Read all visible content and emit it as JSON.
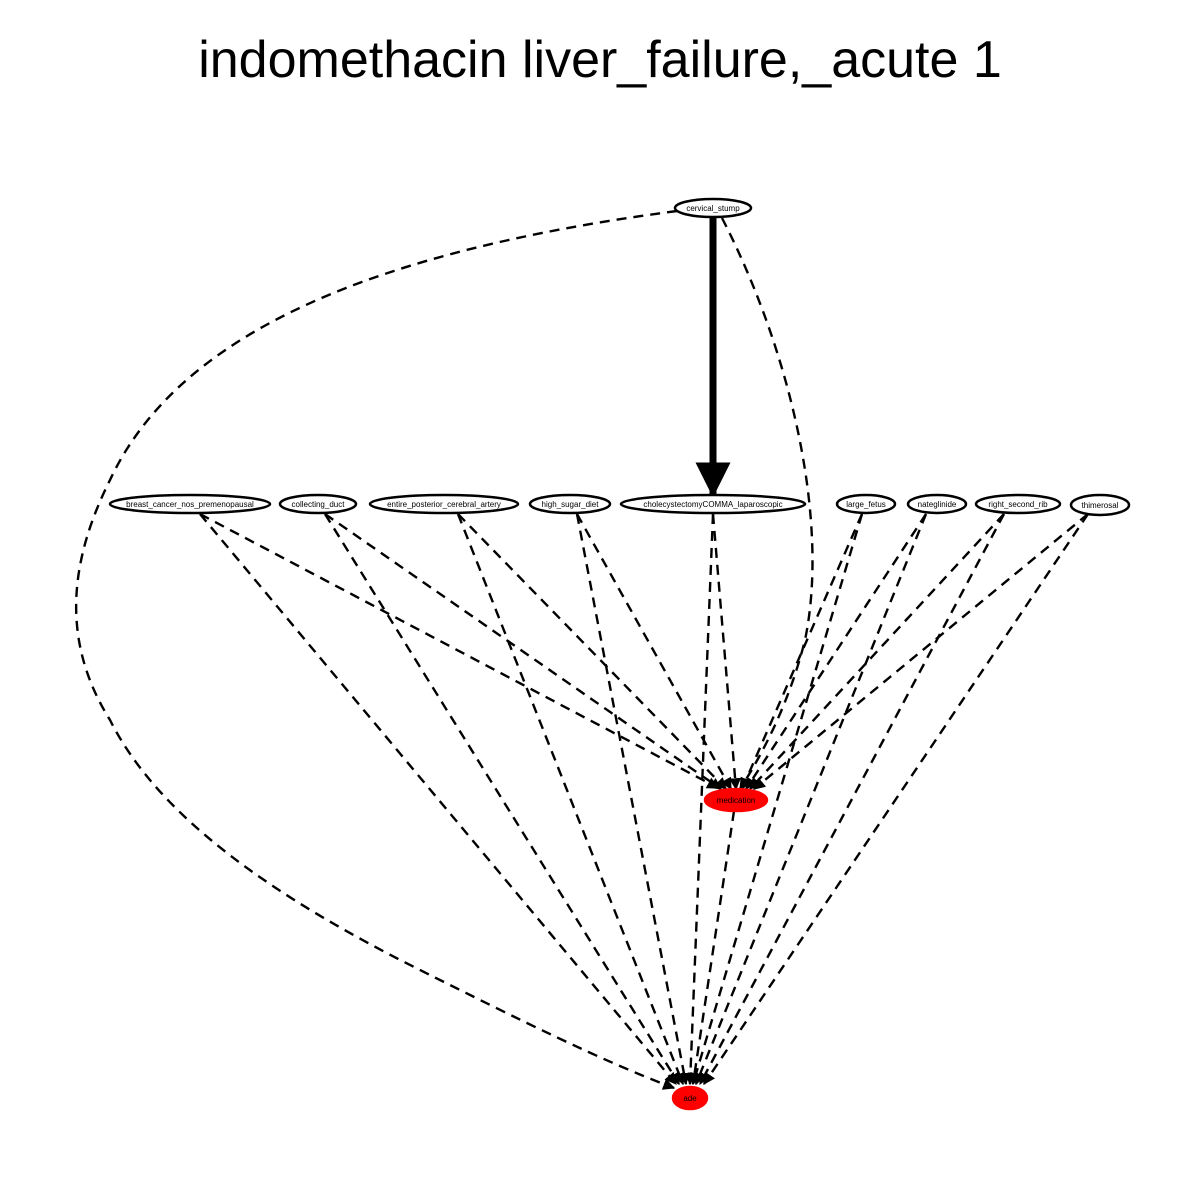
{
  "title": "indomethacin liver_failure,_acute 1",
  "colors": {
    "edge": "#000000",
    "node_outline": "#000000",
    "node_fill_default": "#ffffff",
    "node_fill_highlight": "#ff0000"
  },
  "nodes": [
    {
      "id": "cervical_stump",
      "label": "cervical_stump",
      "highlight": false
    },
    {
      "id": "breast_cancer",
      "label": "breast_cancer_nos_premenopausal",
      "highlight": false
    },
    {
      "id": "collecting_duct",
      "label": "collecting_duct",
      "highlight": false
    },
    {
      "id": "entire_posterior_cerebral_artery",
      "label": "entire_posterior_cerebral_artery",
      "highlight": false
    },
    {
      "id": "high_sugar_diet",
      "label": "high_sugar_diet",
      "highlight": false
    },
    {
      "id": "cholecystectomy",
      "label": "cholecystectomyCOMMA_laparoscopic",
      "highlight": false
    },
    {
      "id": "large_fetus",
      "label": "large_fetus",
      "highlight": false
    },
    {
      "id": "nateglinide",
      "label": "nateglinide",
      "highlight": false
    },
    {
      "id": "right_second_rib",
      "label": "right_second_rib",
      "highlight": false
    },
    {
      "id": "thimerosal",
      "label": "thimerosal",
      "highlight": false
    },
    {
      "id": "medication",
      "label": "medication",
      "highlight": true
    },
    {
      "id": "ade",
      "label": "ade",
      "highlight": true
    }
  ],
  "edges": [
    {
      "from": "cervical_stump",
      "to": "cholecystectomy",
      "style": "bold"
    },
    {
      "from": "cervical_stump",
      "to": "medication",
      "style": "dashed"
    },
    {
      "from": "cervical_stump",
      "to": "ade",
      "style": "dashed"
    },
    {
      "from": "breast_cancer",
      "to": "medication",
      "style": "dashed"
    },
    {
      "from": "breast_cancer",
      "to": "ade",
      "style": "dashed"
    },
    {
      "from": "collecting_duct",
      "to": "medication",
      "style": "dashed"
    },
    {
      "from": "collecting_duct",
      "to": "ade",
      "style": "dashed"
    },
    {
      "from": "entire_posterior_cerebral_artery",
      "to": "medication",
      "style": "dashed"
    },
    {
      "from": "entire_posterior_cerebral_artery",
      "to": "ade",
      "style": "dashed"
    },
    {
      "from": "high_sugar_diet",
      "to": "medication",
      "style": "dashed"
    },
    {
      "from": "high_sugar_diet",
      "to": "ade",
      "style": "dashed"
    },
    {
      "from": "cholecystectomy",
      "to": "medication",
      "style": "dashed"
    },
    {
      "from": "cholecystectomy",
      "to": "ade",
      "style": "dashed"
    },
    {
      "from": "large_fetus",
      "to": "medication",
      "style": "dashed"
    },
    {
      "from": "large_fetus",
      "to": "ade",
      "style": "dashed"
    },
    {
      "from": "nateglinide",
      "to": "medication",
      "style": "dashed"
    },
    {
      "from": "nateglinide",
      "to": "ade",
      "style": "dashed"
    },
    {
      "from": "right_second_rib",
      "to": "medication",
      "style": "dashed"
    },
    {
      "from": "right_second_rib",
      "to": "ade",
      "style": "dashed"
    },
    {
      "from": "thimerosal",
      "to": "medication",
      "style": "dashed"
    },
    {
      "from": "thimerosal",
      "to": "ade",
      "style": "dashed"
    },
    {
      "from": "medication",
      "to": "ade",
      "style": "dashed"
    }
  ]
}
